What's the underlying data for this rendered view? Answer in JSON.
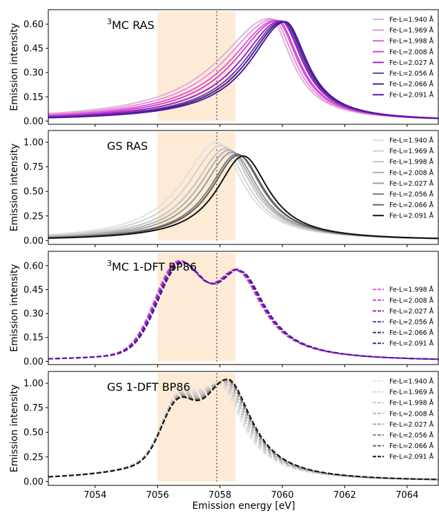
{
  "figure": {
    "xlabel": "Emission energy [eV]",
    "ylabel": "Emission intensity",
    "xlim": [
      7052.5,
      7065
    ],
    "x_ticks": [
      7054,
      7056,
      7058,
      7060,
      7062,
      7064
    ],
    "x_tick_labels": [
      "7054",
      "7056",
      "7058",
      "7060",
      "7062",
      "7064"
    ],
    "shaded_band": [
      7056.0,
      7058.5
    ],
    "shaded_color": "#fdebd6",
    "dotted_line_x": 7057.9,
    "dotted_line_color": "#8a7f7f"
  },
  "chart_data": [
    {
      "type": "line",
      "panel_label_sup": "3",
      "panel_label_rest": "MC RAS",
      "ylabel": "Emission intensity",
      "ylim": [
        -0.02,
        0.69
      ],
      "y_ticks": [
        0.0,
        0.15,
        0.3,
        0.45,
        0.6
      ],
      "y_tick_labels": [
        "0.00",
        "0.15",
        "0.30",
        "0.45",
        "0.60"
      ],
      "line_style": "solid",
      "series": [
        {
          "name": "Fe-L=1.940 Å",
          "color": "#d8b4d8",
          "peak_x": 7059.6,
          "peak_y": 0.635,
          "left_width": 2.0,
          "right_width": 0.85,
          "shoulder_y": 0.06
        },
        {
          "name": "Fe-L=1.969 Å",
          "color": "#ec8fe0",
          "peak_x": 7059.7,
          "peak_y": 0.63,
          "left_width": 1.9,
          "right_width": 0.85,
          "shoulder_y": 0.058
        },
        {
          "name": "Fe-L=1.998 Å",
          "color": "#e25ad8",
          "peak_x": 7059.8,
          "peak_y": 0.625,
          "left_width": 1.8,
          "right_width": 0.85,
          "shoulder_y": 0.055
        },
        {
          "name": "Fe-L=2.008 Å",
          "color": "#c84dd0",
          "peak_x": 7059.85,
          "peak_y": 0.622,
          "left_width": 1.7,
          "right_width": 0.85,
          "shoulder_y": 0.052
        },
        {
          "name": "Fe-L=2.027 Å",
          "color": "#a11fc4",
          "peak_x": 7059.95,
          "peak_y": 0.62,
          "left_width": 1.6,
          "right_width": 0.85,
          "shoulder_y": 0.05
        },
        {
          "name": "Fe-L=2.056 Å",
          "color": "#6a3fb8",
          "peak_x": 7060.0,
          "peak_y": 0.618,
          "left_width": 1.5,
          "right_width": 0.85,
          "shoulder_y": 0.047
        },
        {
          "name": "Fe-L=2.066 Å",
          "color": "#3b2d7a",
          "peak_x": 7060.05,
          "peak_y": 0.617,
          "left_width": 1.45,
          "right_width": 0.85,
          "shoulder_y": 0.045
        },
        {
          "name": "Fe-L=2.091 Å",
          "color": "#5a13a8",
          "peak_x": 7060.1,
          "peak_y": 0.615,
          "left_width": 1.4,
          "right_width": 0.85,
          "shoulder_y": 0.043
        }
      ]
    },
    {
      "type": "line",
      "panel_label_sup": "",
      "panel_label_rest": "GS RAS",
      "ylabel": "Emission intensity",
      "ylim": [
        -0.04,
        1.12
      ],
      "y_ticks": [
        0.0,
        0.25,
        0.5,
        0.75,
        1.0
      ],
      "y_tick_labels": [
        "0.00",
        "0.25",
        "0.50",
        "0.75",
        "1.00"
      ],
      "line_style": "solid",
      "series": [
        {
          "name": "Fe-L=1.940 Å",
          "color": "#e0e0e0",
          "peak_x": 7057.9,
          "peak_y": 1.0,
          "left_width": 1.35,
          "right_width": 1.0,
          "shoulder_y": 0.03
        },
        {
          "name": "Fe-L=1.969 Å",
          "color": "#d2d2d2",
          "peak_x": 7058.05,
          "peak_y": 0.97,
          "left_width": 1.3,
          "right_width": 1.0,
          "shoulder_y": 0.03
        },
        {
          "name": "Fe-L=1.998 Å",
          "color": "#c4c4c4",
          "peak_x": 7058.2,
          "peak_y": 0.94,
          "left_width": 1.25,
          "right_width": 1.0,
          "shoulder_y": 0.03
        },
        {
          "name": "Fe-L=2.008 Å",
          "color": "#b0b0b0",
          "peak_x": 7058.3,
          "peak_y": 0.92,
          "left_width": 1.2,
          "right_width": 1.0,
          "shoulder_y": 0.03
        },
        {
          "name": "Fe-L=2.027 Å",
          "color": "#9c9c9c",
          "peak_x": 7058.4,
          "peak_y": 0.9,
          "left_width": 1.15,
          "right_width": 1.0,
          "shoulder_y": 0.03
        },
        {
          "name": "Fe-L=2.056 Å",
          "color": "#7c7c7c",
          "peak_x": 7058.55,
          "peak_y": 0.88,
          "left_width": 1.1,
          "right_width": 1.0,
          "shoulder_y": 0.03
        },
        {
          "name": "Fe-L=2.066 Å",
          "color": "#5e5e5e",
          "peak_x": 7058.6,
          "peak_y": 0.87,
          "left_width": 1.08,
          "right_width": 1.0,
          "shoulder_y": 0.03
        },
        {
          "name": "Fe-L=2.091 Å",
          "color": "#111111",
          "peak_x": 7058.75,
          "peak_y": 0.86,
          "left_width": 1.05,
          "right_width": 1.0,
          "shoulder_y": 0.03
        }
      ]
    },
    {
      "type": "line",
      "panel_label_sup": "3",
      "panel_label_rest": "MC 1-DFT BP86",
      "ylabel": "Emission intensity",
      "ylim": [
        -0.02,
        0.69
      ],
      "y_ticks": [
        0.0,
        0.15,
        0.3,
        0.45,
        0.6
      ],
      "y_tick_labels": [
        "0.00",
        "0.15",
        "0.30",
        "0.45",
        "0.60"
      ],
      "line_style": "dashed",
      "series": [
        {
          "name": "Fe-L=1.998 Å",
          "color": "#e25ad8",
          "peak_x": 7058.55,
          "peak_y": 0.565,
          "left_width": 1.05,
          "right_width": 1.0,
          "shoulder_y": 0.03,
          "bump_x": 7056.6,
          "bump_y": 0.5,
          "bump_w": 1.0
        },
        {
          "name": "Fe-L=2.008 Å",
          "color": "#c84dd0",
          "peak_x": 7058.57,
          "peak_y": 0.565,
          "left_width": 1.05,
          "right_width": 1.0,
          "shoulder_y": 0.03,
          "bump_x": 7056.62,
          "bump_y": 0.497,
          "bump_w": 1.0
        },
        {
          "name": "Fe-L=2.027 Å",
          "color": "#a11fc4",
          "peak_x": 7058.59,
          "peak_y": 0.565,
          "left_width": 1.05,
          "right_width": 1.0,
          "shoulder_y": 0.03,
          "bump_x": 7056.64,
          "bump_y": 0.494,
          "bump_w": 1.0
        },
        {
          "name": "Fe-L=2.056 Å",
          "color": "#6a3fb8",
          "peak_x": 7058.61,
          "peak_y": 0.565,
          "left_width": 1.05,
          "right_width": 1.0,
          "shoulder_y": 0.03,
          "bump_x": 7056.66,
          "bump_y": 0.49,
          "bump_w": 1.0
        },
        {
          "name": "Fe-L=2.066 Å",
          "color": "#3b2d7a",
          "peak_x": 7058.63,
          "peak_y": 0.565,
          "left_width": 1.05,
          "right_width": 1.0,
          "shoulder_y": 0.03,
          "bump_x": 7056.68,
          "bump_y": 0.487,
          "bump_w": 1.0
        },
        {
          "name": "Fe-L=2.091 Å",
          "color": "#5a13a8",
          "peak_x": 7058.65,
          "peak_y": 0.565,
          "left_width": 1.05,
          "right_width": 1.0,
          "shoulder_y": 0.03,
          "bump_x": 7056.7,
          "bump_y": 0.484,
          "bump_w": 1.0
        }
      ]
    },
    {
      "type": "line",
      "panel_label_sup": "",
      "panel_label_rest": "GS 1-DFT BP86",
      "ylabel": "Emission intensity",
      "ylim": [
        -0.04,
        1.12
      ],
      "y_ticks": [
        0.0,
        0.25,
        0.5,
        0.75,
        1.0
      ],
      "y_tick_labels": [
        "0.00",
        "0.25",
        "0.50",
        "0.75",
        "1.00"
      ],
      "line_style": "dashed",
      "series": [
        {
          "name": "Fe-L=1.940 Å",
          "color": "#e4e4e4",
          "peak_x": 7057.95,
          "peak_y": 0.98,
          "left_width": 1.25,
          "right_width": 0.95,
          "shoulder_y": 0.03,
          "bump_x": 7056.6,
          "bump_y": 0.45,
          "bump_w": 0.7
        },
        {
          "name": "Fe-L=1.969 Å",
          "color": "#d8d8d8",
          "peak_x": 7058.0,
          "peak_y": 0.99,
          "left_width": 1.25,
          "right_width": 0.95,
          "shoulder_y": 0.03,
          "bump_x": 7056.6,
          "bump_y": 0.45,
          "bump_w": 0.7
        },
        {
          "name": "Fe-L=1.998 Å",
          "color": "#cbcbcb",
          "peak_x": 7058.05,
          "peak_y": 1.0,
          "left_width": 1.25,
          "right_width": 0.95,
          "shoulder_y": 0.03,
          "bump_x": 7056.6,
          "bump_y": 0.45,
          "bump_w": 0.7
        },
        {
          "name": "Fe-L=2.008 Å",
          "color": "#bcbcbc",
          "peak_x": 7058.1,
          "peak_y": 1.01,
          "left_width": 1.25,
          "right_width": 0.95,
          "shoulder_y": 0.03,
          "bump_x": 7056.6,
          "bump_y": 0.45,
          "bump_w": 0.7
        },
        {
          "name": "Fe-L=2.027 Å",
          "color": "#a8a8a8",
          "peak_x": 7058.15,
          "peak_y": 1.02,
          "left_width": 1.25,
          "right_width": 0.95,
          "shoulder_y": 0.03,
          "bump_x": 7056.6,
          "bump_y": 0.45,
          "bump_w": 0.7
        },
        {
          "name": "Fe-L=2.056 Å",
          "color": "#8a8a8a",
          "peak_x": 7058.2,
          "peak_y": 1.03,
          "left_width": 1.25,
          "right_width": 0.95,
          "shoulder_y": 0.03,
          "bump_x": 7056.6,
          "bump_y": 0.45,
          "bump_w": 0.7
        },
        {
          "name": "Fe-L=2.066 Å",
          "color": "#6a6a6a",
          "peak_x": 7058.22,
          "peak_y": 1.035,
          "left_width": 1.25,
          "right_width": 0.95,
          "shoulder_y": 0.03,
          "bump_x": 7056.6,
          "bump_y": 0.45,
          "bump_w": 0.7
        },
        {
          "name": "Fe-L=2.091 Å",
          "color": "#111111",
          "peak_x": 7058.25,
          "peak_y": 1.04,
          "left_width": 1.25,
          "right_width": 0.95,
          "shoulder_y": 0.03,
          "bump_x": 7056.6,
          "bump_y": 0.45,
          "bump_w": 0.7
        }
      ]
    }
  ]
}
